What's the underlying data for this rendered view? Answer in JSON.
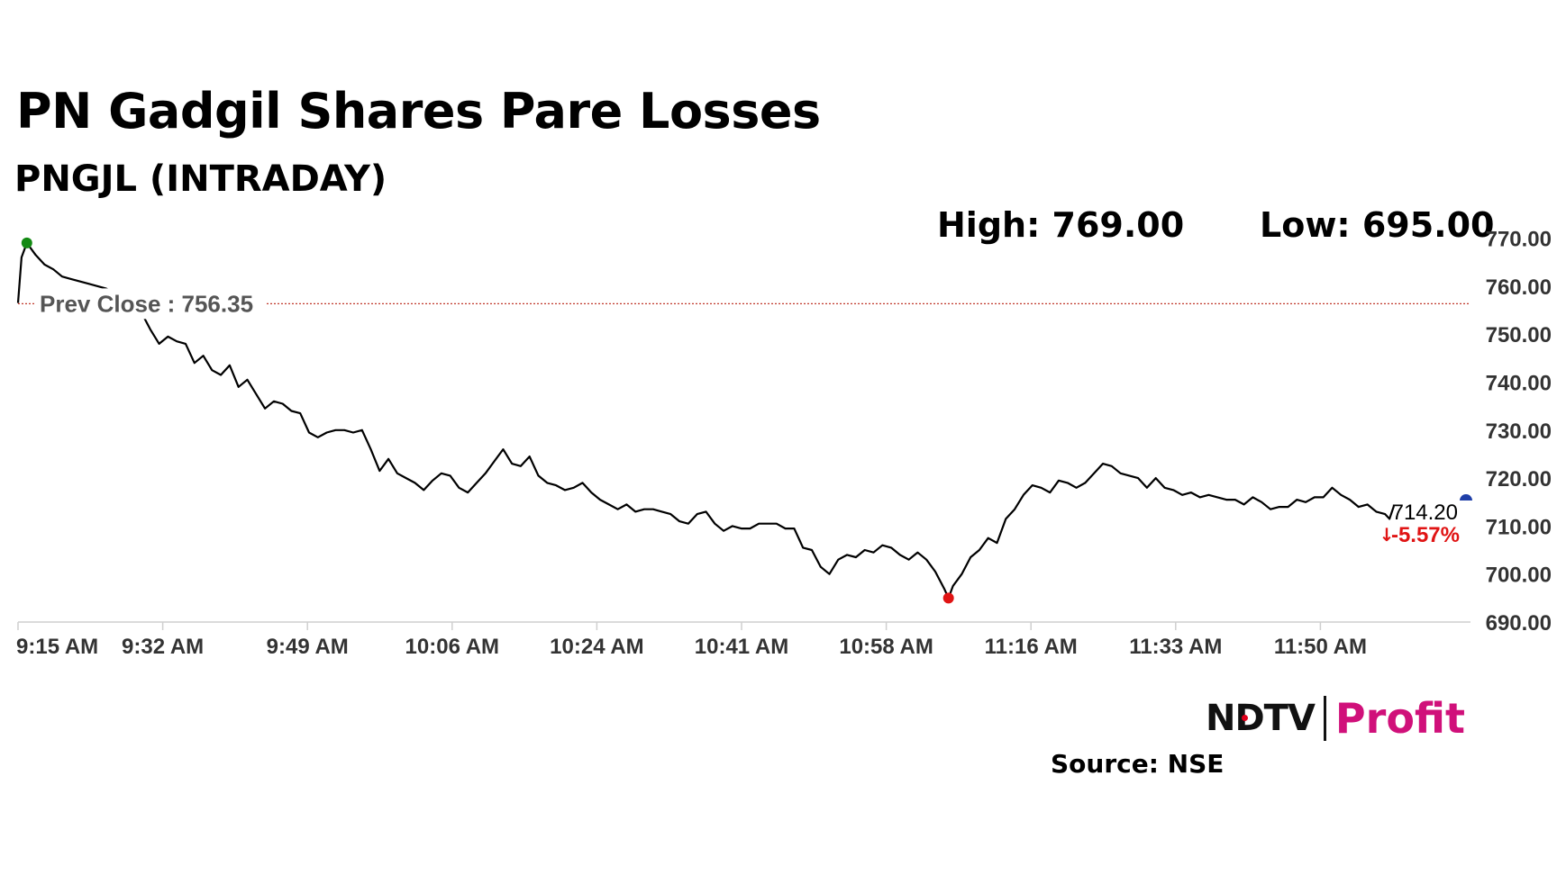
{
  "header": {
    "title": "PN Gadgil Shares Pare Losses",
    "subtitle": "PNGJL (INTRADAY)",
    "high_label": "High: 769.00",
    "low_label": "Low: 695.00"
  },
  "footer": {
    "source": "Source: NSE",
    "logo_ndtv": "NDTV",
    "logo_profit": "Profit"
  },
  "chart_data": {
    "type": "line",
    "title": "PN Gadgil Shares Pare Losses",
    "subtitle": "PNGJL (INTRADAY)",
    "xlabel": "",
    "ylabel": "",
    "ylim": [
      690,
      770
    ],
    "y_ticks": [
      "770.00",
      "760.00",
      "750.00",
      "740.00",
      "730.00",
      "720.00",
      "710.00",
      "700.00",
      "690.00"
    ],
    "x_ticks": [
      "9:15 AM",
      "9:32 AM",
      "9:49 AM",
      "10:06 AM",
      "10:24 AM",
      "10:41 AM",
      "10:58 AM",
      "11:16 AM",
      "11:33 AM",
      "11:50 AM"
    ],
    "grid": false,
    "prev_close": 756.35,
    "prev_close_label": "Prev Close : 756.35",
    "high": 769.0,
    "low": 695.0,
    "last_value_label": "714.20",
    "change_label": "-5.57%",
    "colors": {
      "line": "#000000",
      "prev_close": "#c0392b",
      "high_marker": "#138a13",
      "low_marker": "#e01414",
      "last_marker": "#1f3fa8",
      "change": "#e01414",
      "axis_text": "#333333"
    },
    "series": [
      {
        "points": [
          [
            0,
            756.5
          ],
          [
            0.4,
            766.0
          ],
          [
            1,
            769.0
          ],
          [
            2,
            766.5
          ],
          [
            3,
            764.5
          ],
          [
            4,
            763.5
          ],
          [
            5,
            762.0
          ],
          [
            6,
            761.5
          ],
          [
            7,
            761.0
          ],
          [
            8,
            760.5
          ],
          [
            10,
            759.5
          ],
          [
            12,
            757.5
          ],
          [
            13,
            757.0
          ],
          [
            14,
            754.5
          ],
          [
            15,
            751.0
          ],
          [
            16,
            748.0
          ],
          [
            17,
            749.5
          ],
          [
            18,
            748.5
          ],
          [
            19,
            748.0
          ],
          [
            20,
            744.0
          ],
          [
            21,
            745.5
          ],
          [
            22,
            742.5
          ],
          [
            23,
            741.5
          ],
          [
            24,
            743.5
          ],
          [
            25,
            739.0
          ],
          [
            26,
            740.5
          ],
          [
            27,
            737.5
          ],
          [
            28,
            734.5
          ],
          [
            29,
            736.0
          ],
          [
            30,
            735.5
          ],
          [
            31,
            734.0
          ],
          [
            32,
            733.5
          ],
          [
            33,
            729.5
          ],
          [
            34,
            728.5
          ],
          [
            35,
            729.5
          ],
          [
            36,
            730.0
          ],
          [
            37,
            730.0
          ],
          [
            38,
            729.5
          ],
          [
            39,
            730.0
          ],
          [
            40,
            726.0
          ],
          [
            41,
            721.5
          ],
          [
            42,
            724.0
          ],
          [
            43,
            721.0
          ],
          [
            44,
            720.0
          ],
          [
            45,
            719.0
          ],
          [
            46,
            717.5
          ],
          [
            47,
            719.5
          ],
          [
            48,
            721.0
          ],
          [
            49,
            720.5
          ],
          [
            50,
            718.0
          ],
          [
            51,
            717.0
          ],
          [
            52,
            719.0
          ],
          [
            53,
            721.0
          ],
          [
            54,
            723.5
          ],
          [
            55,
            726.0
          ],
          [
            56,
            723.0
          ],
          [
            57,
            722.5
          ],
          [
            58,
            724.5
          ],
          [
            59,
            720.5
          ],
          [
            60,
            719.0
          ],
          [
            61,
            718.5
          ],
          [
            62,
            717.5
          ],
          [
            63,
            718.0
          ],
          [
            64,
            719.0
          ],
          [
            65,
            717.0
          ],
          [
            66,
            715.5
          ],
          [
            67,
            714.5
          ],
          [
            68,
            713.5
          ],
          [
            69,
            714.5
          ],
          [
            70,
            713.0
          ],
          [
            71,
            713.5
          ],
          [
            72,
            713.5
          ],
          [
            73,
            713.0
          ],
          [
            74,
            712.5
          ],
          [
            75,
            711.0
          ],
          [
            76,
            710.5
          ],
          [
            77,
            712.5
          ],
          [
            78,
            713.0
          ],
          [
            79,
            710.5
          ],
          [
            80,
            709.0
          ],
          [
            81,
            710.0
          ],
          [
            82,
            709.5
          ],
          [
            83,
            709.5
          ],
          [
            84,
            710.5
          ],
          [
            85,
            710.5
          ],
          [
            86,
            710.5
          ],
          [
            87,
            709.5
          ],
          [
            88,
            709.5
          ],
          [
            89,
            705.5
          ],
          [
            90,
            705.0
          ],
          [
            91,
            701.5
          ],
          [
            92,
            700.0
          ],
          [
            93,
            703.0
          ],
          [
            94,
            704.0
          ],
          [
            95,
            703.5
          ],
          [
            96,
            705.0
          ],
          [
            97,
            704.5
          ],
          [
            98,
            706.0
          ],
          [
            99,
            705.5
          ],
          [
            100,
            704.0
          ],
          [
            101,
            703.0
          ],
          [
            102,
            704.5
          ],
          [
            103,
            703.0
          ],
          [
            104,
            700.5
          ],
          [
            105,
            697.0
          ],
          [
            105.5,
            695.0
          ],
          [
            106,
            697.5
          ],
          [
            107,
            700.0
          ],
          [
            108,
            703.5
          ],
          [
            109,
            705.0
          ],
          [
            110,
            707.5
          ],
          [
            111,
            706.5
          ],
          [
            112,
            711.5
          ],
          [
            113,
            713.5
          ],
          [
            114,
            716.5
          ],
          [
            115,
            718.5
          ],
          [
            116,
            718.0
          ],
          [
            117,
            717.0
          ],
          [
            118,
            719.5
          ],
          [
            119,
            719.0
          ],
          [
            120,
            718.0
          ],
          [
            121,
            719.0
          ],
          [
            122,
            721.0
          ],
          [
            123,
            723.0
          ],
          [
            124,
            722.5
          ],
          [
            125,
            721.0
          ],
          [
            126,
            720.5
          ],
          [
            127,
            720.0
          ],
          [
            128,
            718.0
          ],
          [
            129,
            720.0
          ],
          [
            130,
            718.0
          ],
          [
            131,
            717.5
          ],
          [
            132,
            716.5
          ],
          [
            133,
            717.0
          ],
          [
            134,
            716.0
          ],
          [
            135,
            716.5
          ],
          [
            136,
            716.0
          ],
          [
            137,
            715.5
          ],
          [
            138,
            715.5
          ],
          [
            139,
            714.5
          ],
          [
            140,
            716.0
          ],
          [
            141,
            715.0
          ],
          [
            142,
            713.5
          ],
          [
            143,
            714.0
          ],
          [
            144,
            714.0
          ],
          [
            145,
            715.5
          ],
          [
            146,
            715.0
          ],
          [
            147,
            716.0
          ],
          [
            148,
            716.0
          ],
          [
            149,
            718.0
          ],
          [
            150,
            716.5
          ],
          [
            151,
            715.5
          ],
          [
            152,
            714.0
          ],
          [
            153,
            714.5
          ],
          [
            154,
            713.0
          ],
          [
            155,
            712.5
          ],
          [
            155.5,
            711.5
          ],
          [
            156,
            714.2
          ]
        ]
      }
    ]
  }
}
